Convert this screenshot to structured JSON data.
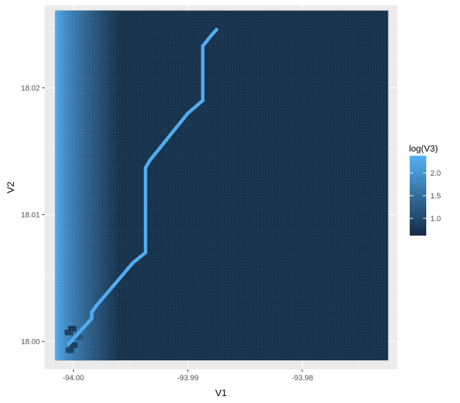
{
  "chart_data": {
    "type": "heatmap",
    "title": "",
    "xlabel": "V1",
    "ylabel": "V2",
    "xlim": [
      -94.0025,
      -93.9717
    ],
    "ylim": [
      17.9978,
      18.0265
    ],
    "x_ticks": [
      {
        "value": -94.0,
        "label": "-94.00"
      },
      {
        "value": -93.99,
        "label": "-93.99"
      },
      {
        "value": -93.98,
        "label": "-93.98"
      }
    ],
    "y_ticks": [
      {
        "value": 18.0,
        "label": "18.00"
      },
      {
        "value": 18.01,
        "label": "18.01"
      },
      {
        "value": 18.02,
        "label": "18.02"
      }
    ],
    "grid": true,
    "grid_extent": {
      "x": [
        -94.0016,
        -93.9725
      ],
      "y": [
        17.9985,
        18.0261
      ]
    },
    "legend": {
      "title": "log(V3)",
      "position": "right",
      "range": [
        0.62,
        2.38
      ],
      "ticks": [
        {
          "value": 1.0,
          "label": "1.0"
        },
        {
          "value": 1.5,
          "label": "1.5"
        },
        {
          "value": 2.0,
          "label": "2.0"
        }
      ],
      "low_color": "#132B43",
      "high_color": "#56B1F7"
    },
    "high_value_path": [
      {
        "x": -93.9875,
        "y": 18.0246
      },
      {
        "x": -93.9879,
        "y": 18.0242
      },
      {
        "x": -93.9887,
        "y": 18.0233
      },
      {
        "x": -93.9887,
        "y": 18.019
      },
      {
        "x": -93.99,
        "y": 18.018
      },
      {
        "x": -93.9933,
        "y": 18.0143
      },
      {
        "x": -93.9937,
        "y": 18.0137
      },
      {
        "x": -93.9937,
        "y": 18.007
      },
      {
        "x": -93.9948,
        "y": 18.0062
      },
      {
        "x": -93.998,
        "y": 18.0028
      },
      {
        "x": -93.9984,
        "y": 18.0023
      },
      {
        "x": -93.9984,
        "y": 18.0018
      },
      {
        "x": -93.9997,
        "y": 18.0005
      },
      {
        "x": -94.0004,
        "y": 17.9998
      }
    ],
    "path_value": 2.3,
    "background_value": 0.72,
    "left_edge_value": 2.25,
    "left_gradient_width": 0.0055,
    "dark_patches": [
      {
        "x": -94.0001,
        "y": 18.001,
        "value": 0.8
      },
      {
        "x": -94.0004,
        "y": 18.0007,
        "value": 0.9
      },
      {
        "x": -94.0,
        "y": 17.9997,
        "value": 0.85
      },
      {
        "x": -94.0003,
        "y": 17.9993,
        "value": 0.95
      },
      {
        "x": -93.9995,
        "y": 18.0003,
        "value": 1.2
      }
    ]
  },
  "colors": {
    "panel_background": "#EBEBEB",
    "major_grid": "#FFFFFF",
    "minor_grid": "#F5F5F5"
  }
}
